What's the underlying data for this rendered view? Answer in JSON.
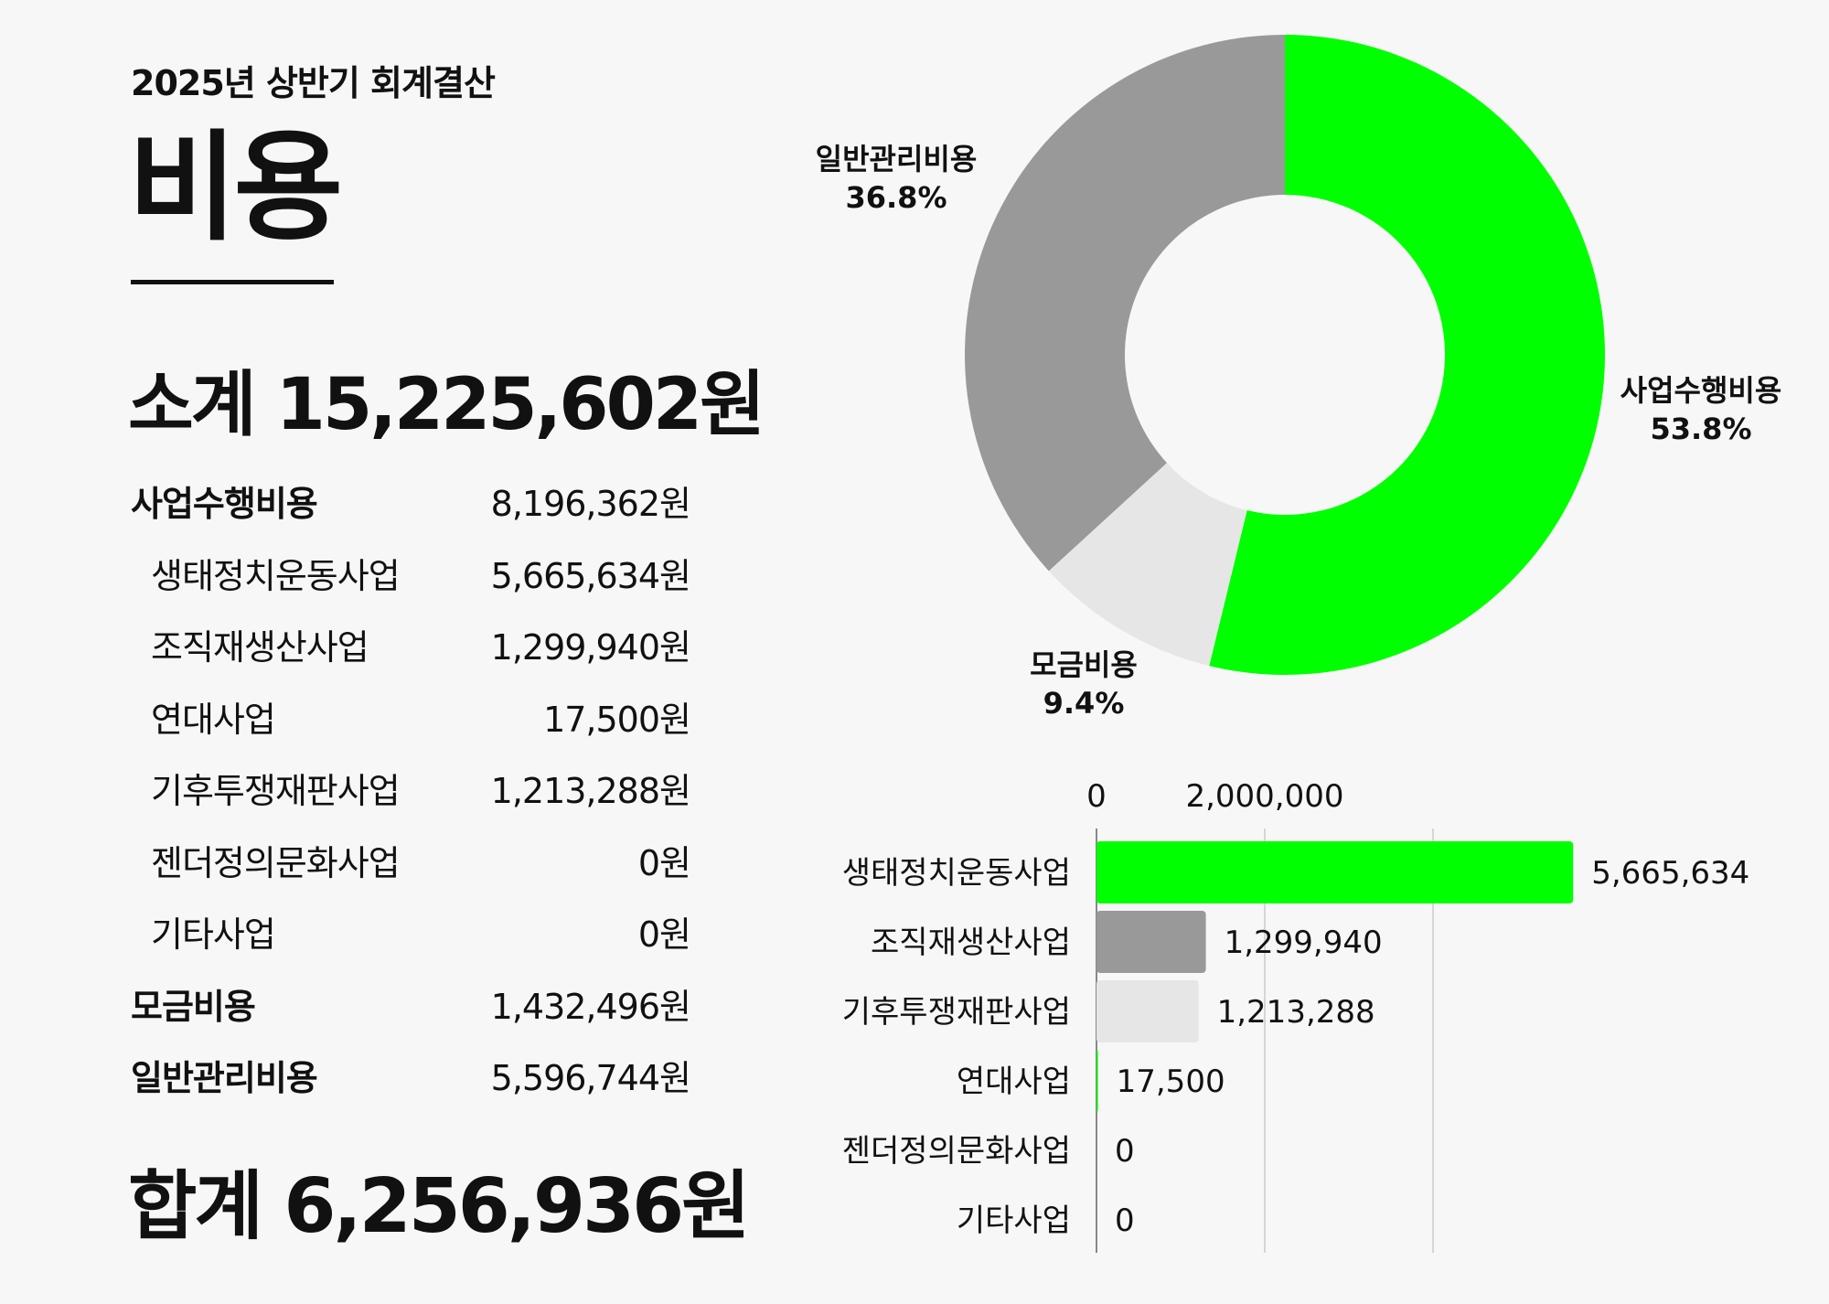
{
  "header": "2025년 상반기 회계결산",
  "title": "비용",
  "subtotal_text": "소계 15,225,602원",
  "total_text": "합계 6,256,936원",
  "rows": [
    {
      "label": "사업수행비용",
      "value": "8,196,362원",
      "level": "main"
    },
    {
      "label": "생태정치운동사업",
      "value": "5,665,634원",
      "level": "sub"
    },
    {
      "label": "조직재생산사업",
      "value": "1,299,940원",
      "level": "sub"
    },
    {
      "label": "연대사업",
      "value": "17,500원",
      "level": "sub"
    },
    {
      "label": "기후투쟁재판사업",
      "value": "1,213,288원",
      "level": "sub"
    },
    {
      "label": "젠더정의문화사업",
      "value": "0원",
      "level": "sub"
    },
    {
      "label": "기타사업",
      "value": "0원",
      "level": "sub"
    },
    {
      "label": "모금비용",
      "value": "1,432,496원",
      "level": "main"
    },
    {
      "label": "일반관리비용",
      "value": "5,596,744원",
      "level": "main"
    }
  ],
  "chart_data": [
    {
      "type": "pie",
      "donut": true,
      "slices": [
        {
          "name": "사업수행비용",
          "percent_label": "53.8%",
          "value": 53.8,
          "color": "#00ff00"
        },
        {
          "name": "모금비용",
          "percent_label": "9.4%",
          "value": 9.4,
          "color": "#e6e6e6"
        },
        {
          "name": "일반관리비용",
          "percent_label": "36.8%",
          "value": 36.8,
          "color": "#999999"
        }
      ]
    },
    {
      "type": "bar",
      "orientation": "horizontal",
      "categories": [
        "생태정치운동사업",
        "조직재생산사업",
        "기후투쟁재판사업",
        "연대사업",
        "젠더정의문화사업",
        "기타사업"
      ],
      "values": [
        5665634,
        1299940,
        1213288,
        17500,
        0,
        0
      ],
      "value_labels": [
        "5,665,634",
        "1,299,940",
        "1,213,288",
        "17,500",
        "0",
        "0"
      ],
      "colors": [
        "#00ff00",
        "#999999",
        "#e6e6e6",
        "#00ff00",
        "#00ff00",
        "#00ff00"
      ],
      "tick_values": [
        0,
        2000000
      ],
      "tick_labels": [
        "0",
        "2,000,000"
      ],
      "xlim": [
        0,
        6000000
      ],
      "grid": true
    }
  ]
}
